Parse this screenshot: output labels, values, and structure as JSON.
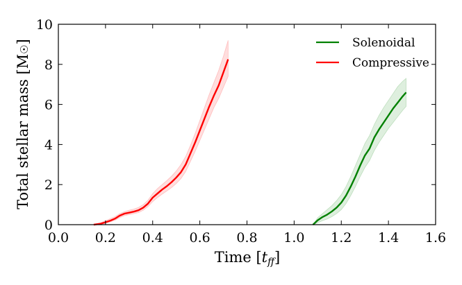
{
  "chart_data": {
    "type": "line",
    "title": "",
    "xlabel": "Time [t_ff]",
    "xlabel_main": "Time [",
    "xlabel_italic": "t",
    "xlabel_sub": "ff",
    "xlabel_close": "]",
    "ylabel": "Total stellar mass [M☉]",
    "ylabel_main": "Total stellar mass [M",
    "ylabel_symbol": "☉",
    "ylabel_close": "]",
    "xlim": [
      0.0,
      1.6
    ],
    "ylim": [
      0,
      10
    ],
    "xticks": [
      "0.0",
      "0.2",
      "0.4",
      "0.6",
      "0.8",
      "1.0",
      "1.2",
      "1.4",
      "1.6"
    ],
    "yticks": [
      "0",
      "2",
      "4",
      "6",
      "8",
      "10"
    ],
    "grid": false,
    "legend_position": "top-right",
    "series": [
      {
        "name": "Solenoidal",
        "color": "#008000",
        "x": [
          1.08,
          1.1,
          1.12,
          1.14,
          1.16,
          1.18,
          1.2,
          1.22,
          1.24,
          1.26,
          1.28,
          1.3,
          1.32,
          1.34,
          1.36,
          1.38,
          1.4,
          1.42,
          1.44,
          1.46,
          1.475
        ],
        "y": [
          0.0,
          0.22,
          0.38,
          0.5,
          0.66,
          0.85,
          1.1,
          1.45,
          1.9,
          2.4,
          2.95,
          3.45,
          3.8,
          4.35,
          4.75,
          5.1,
          5.45,
          5.8,
          6.1,
          6.4,
          6.6
        ],
        "y_low": [
          0.0,
          0.1,
          0.2,
          0.28,
          0.4,
          0.55,
          0.75,
          1.05,
          1.45,
          1.9,
          2.4,
          2.85,
          3.2,
          3.7,
          4.1,
          4.45,
          4.8,
          5.1,
          5.4,
          5.7,
          5.9
        ],
        "y_high": [
          0.0,
          0.35,
          0.55,
          0.75,
          0.95,
          1.2,
          1.5,
          1.9,
          2.4,
          2.95,
          3.5,
          4.05,
          4.45,
          5.0,
          5.45,
          5.85,
          6.2,
          6.55,
          6.9,
          7.15,
          7.3
        ]
      },
      {
        "name": "Compressive",
        "color": "#ff0000",
        "x": [
          0.15,
          0.18,
          0.2,
          0.22,
          0.24,
          0.26,
          0.28,
          0.3,
          0.32,
          0.34,
          0.36,
          0.38,
          0.4,
          0.42,
          0.44,
          0.46,
          0.48,
          0.5,
          0.52,
          0.54,
          0.56,
          0.58,
          0.6,
          0.62,
          0.64,
          0.66,
          0.68,
          0.7,
          0.72
        ],
        "y": [
          0.0,
          0.05,
          0.12,
          0.2,
          0.3,
          0.45,
          0.55,
          0.6,
          0.65,
          0.72,
          0.85,
          1.05,
          1.35,
          1.55,
          1.75,
          1.92,
          2.12,
          2.35,
          2.62,
          3.0,
          3.55,
          4.1,
          4.7,
          5.3,
          5.9,
          6.45,
          6.95,
          7.6,
          8.25
        ],
        "y_low": [
          0.0,
          0.02,
          0.07,
          0.14,
          0.22,
          0.35,
          0.45,
          0.5,
          0.55,
          0.6,
          0.72,
          0.9,
          1.15,
          1.35,
          1.52,
          1.68,
          1.85,
          2.05,
          2.3,
          2.65,
          3.15,
          3.65,
          4.2,
          4.75,
          5.3,
          5.85,
          6.3,
          6.85,
          7.4
        ],
        "y_high": [
          0.0,
          0.1,
          0.2,
          0.3,
          0.4,
          0.55,
          0.65,
          0.72,
          0.78,
          0.86,
          1.0,
          1.22,
          1.55,
          1.8,
          2.0,
          2.2,
          2.42,
          2.68,
          3.0,
          3.4,
          3.95,
          4.55,
          5.2,
          5.85,
          6.5,
          7.1,
          7.7,
          8.4,
          9.2
        ]
      }
    ]
  }
}
